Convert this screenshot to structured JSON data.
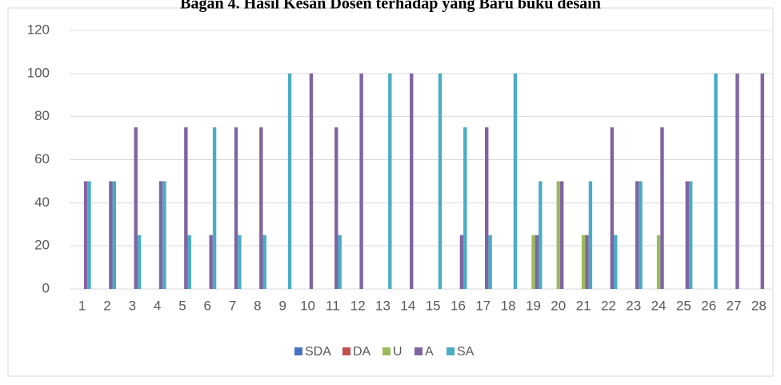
{
  "chart_data": {
    "type": "bar",
    "title": "Bagan 4. Hasil Kesan Dosen terhadap yang Baru buku desain",
    "categories": [
      "1",
      "2",
      "3",
      "4",
      "5",
      "6",
      "7",
      "8",
      "9",
      "10",
      "11",
      "12",
      "13",
      "14",
      "15",
      "16",
      "17",
      "18",
      "19",
      "20",
      "21",
      "22",
      "23",
      "24",
      "25",
      "26",
      "27",
      "28"
    ],
    "series": [
      {
        "name": "SDA",
        "color": "#4472c4",
        "values": [
          0,
          0,
          0,
          0,
          0,
          0,
          0,
          0,
          0,
          0,
          0,
          0,
          0,
          0,
          0,
          0,
          0,
          0,
          0,
          0,
          0,
          0,
          0,
          0,
          0,
          0,
          0,
          0
        ]
      },
      {
        "name": "DA",
        "color": "#c0504d",
        "values": [
          0,
          0,
          0,
          0,
          0,
          0,
          0,
          0,
          0,
          0,
          0,
          0,
          0,
          0,
          0,
          0,
          0,
          0,
          0,
          0,
          0,
          0,
          0,
          0,
          0,
          0,
          0,
          0
        ]
      },
      {
        "name": "U",
        "color": "#9bbb59",
        "values": [
          0,
          0,
          0,
          0,
          0,
          0,
          0,
          0,
          0,
          0,
          0,
          0,
          0,
          0,
          0,
          0,
          0,
          0,
          25,
          50,
          25,
          0,
          0,
          25,
          0,
          0,
          0,
          0
        ]
      },
      {
        "name": "A",
        "color": "#8064a2",
        "values": [
          50,
          50,
          75,
          50,
          75,
          25,
          75,
          75,
          0,
          100,
          75,
          100,
          0,
          100,
          0,
          25,
          75,
          0,
          25,
          50,
          25,
          75,
          50,
          75,
          50,
          0,
          100,
          100
        ]
      },
      {
        "name": "SA",
        "color": "#4bacc6",
        "values": [
          50,
          50,
          25,
          50,
          25,
          75,
          25,
          25,
          100,
          0,
          25,
          0,
          100,
          0,
          100,
          75,
          25,
          100,
          50,
          0,
          50,
          25,
          50,
          0,
          50,
          100,
          0,
          0
        ]
      }
    ],
    "ylim": [
      0,
      120
    ],
    "yticks": [
      0,
      20,
      40,
      60,
      80,
      100,
      120
    ],
    "grid": true,
    "legend": "bottom"
  }
}
